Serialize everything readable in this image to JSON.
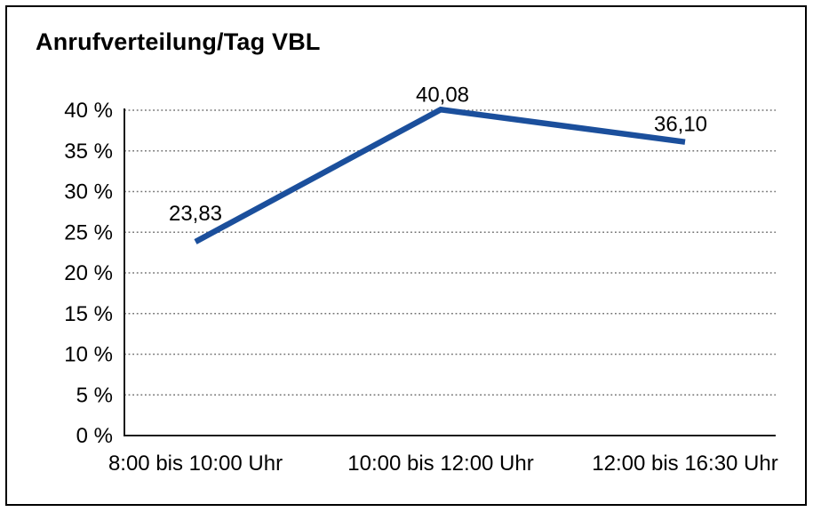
{
  "chart_data": {
    "type": "line",
    "title": "Anrufverteilung/Tag VBL",
    "categories": [
      "8:00 bis 10:00 Uhr",
      "10:00 bis 12:00 Uhr",
      "12:00 bis 16:30 Uhr"
    ],
    "values": [
      23.83,
      40.08,
      36.1
    ],
    "data_labels": [
      "23,83",
      "40,08",
      "36,10"
    ],
    "y_tick_values": [
      0,
      5,
      10,
      15,
      20,
      25,
      30,
      35,
      40
    ],
    "y_tick_labels": [
      "0 %",
      "5 %",
      "10 %",
      "15 %",
      "20 %",
      "25 %",
      "30 %",
      "35 %",
      "40 %"
    ],
    "ylim": [
      0,
      40
    ],
    "xlabel": "",
    "ylabel": "",
    "grid": "horizontal-dotted",
    "legend": "none",
    "colors": {
      "line": "#1b4f9c",
      "axis": "#1a1a1a",
      "grid": "#737373",
      "text": "#000000",
      "background": "#ffffff",
      "frame_border": "#000000"
    }
  }
}
